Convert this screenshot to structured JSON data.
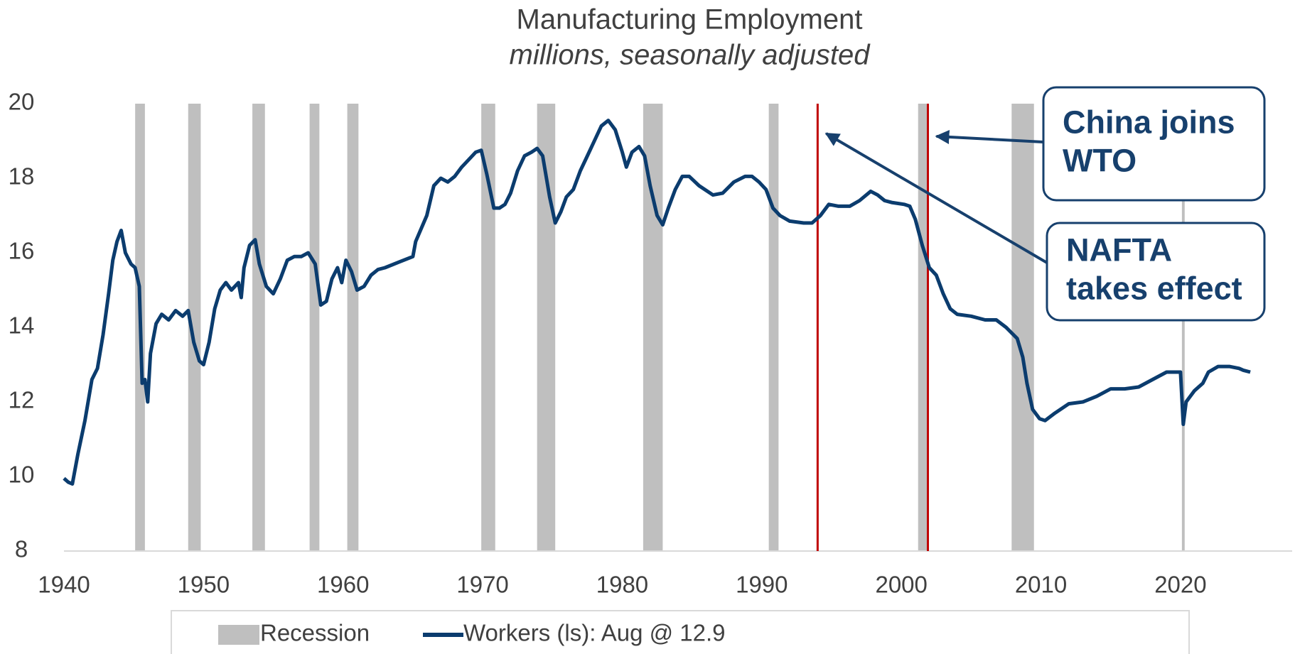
{
  "chart_data": {
    "type": "line",
    "title": "Manufacturing Employment",
    "subtitle": "millions, seasonally adjusted",
    "xlim": [
      1940,
      2028
    ],
    "xticks": [
      1940,
      1950,
      1960,
      1970,
      1980,
      1990,
      2000,
      2010,
      2020
    ],
    "ylim": [
      8,
      20
    ],
    "yticks": [
      8,
      10,
      12,
      14,
      16,
      18,
      20
    ],
    "grid": false,
    "legend": "bottom",
    "recessions": {
      "name": "Recession",
      "color": "#bfbfbf",
      "periods": [
        [
          1945.1,
          1945.8
        ],
        [
          1948.9,
          1949.8
        ],
        [
          1953.5,
          1954.4
        ],
        [
          1957.6,
          1958.3
        ],
        [
          1960.3,
          1961.1
        ],
        [
          1969.9,
          1970.9
        ],
        [
          1973.9,
          1975.2
        ],
        [
          1981.5,
          1982.9
        ],
        [
          1990.5,
          1991.2
        ],
        [
          2001.2,
          2001.9
        ],
        [
          2007.9,
          2009.5
        ],
        [
          2020.1,
          2020.3
        ]
      ]
    },
    "markers": [
      {
        "x": 1994,
        "color": "#c00000",
        "label": [
          "NAFTA",
          "takes effect"
        ]
      },
      {
        "x": 2001.9,
        "color": "#c00000",
        "label": [
          "China joins",
          "WTO"
        ]
      }
    ],
    "series": [
      {
        "name": "Workers (ls): Aug @ 12.9",
        "color": "#0b3c6e",
        "x": [
          1940.0,
          1940.3,
          1940.6,
          1941,
          1941.5,
          1942,
          1942.4,
          1942.8,
          1943.2,
          1943.5,
          1943.8,
          1944.1,
          1944.4,
          1944.8,
          1945.1,
          1945.4,
          1945.6,
          1945.8,
          1946.0,
          1946.2,
          1946.6,
          1947.0,
          1947.5,
          1948,
          1948.5,
          1948.9,
          1949.3,
          1949.7,
          1950.0,
          1950.4,
          1950.8,
          1951.2,
          1951.6,
          1952.0,
          1952.5,
          1952.7,
          1952.9,
          1953.3,
          1953.7,
          1954.0,
          1954.5,
          1955.0,
          1955.5,
          1956.0,
          1956.5,
          1957.0,
          1957.5,
          1958.0,
          1958.4,
          1958.8,
          1959.2,
          1959.6,
          1959.9,
          1960.2,
          1960.6,
          1961.0,
          1961.5,
          1962.0,
          1962.5,
          1963.0,
          1964.0,
          1965.0,
          1965.2,
          1966.0,
          1966.5,
          1967.0,
          1967.5,
          1968.0,
          1968.5,
          1969.0,
          1969.5,
          1969.9,
          1970.3,
          1970.8,
          1971.2,
          1971.6,
          1972.0,
          1972.5,
          1973.0,
          1973.5,
          1973.9,
          1974.3,
          1974.8,
          1975.2,
          1975.6,
          1976.0,
          1976.5,
          1977.0,
          1977.5,
          1978.0,
          1978.5,
          1979.0,
          1979.5,
          1980.0,
          1980.3,
          1980.7,
          1981.2,
          1981.6,
          1982.0,
          1982.5,
          1982.9,
          1983.3,
          1983.8,
          1984.3,
          1984.8,
          1985.5,
          1986.5,
          1987.2,
          1988.0,
          1988.8,
          1989.3,
          1989.8,
          1990.3,
          1990.8,
          1991.3,
          1992.0,
          1993.0,
          1993.6,
          1994.2,
          1994.8,
          1995.5,
          1996.3,
          1997.0,
          1997.8,
          1998.3,
          1998.8,
          1999.3,
          2000.2,
          2000.6,
          2001.0,
          2001.5,
          2002.0,
          2002.5,
          2003.0,
          2003.5,
          2004.0,
          2005.0,
          2006.0,
          2006.8,
          2007.5,
          2008.3,
          2008.7,
          2009.0,
          2009.4,
          2009.9,
          2010.3,
          2011,
          2012,
          2013,
          2014,
          2015,
          2016,
          2017,
          2018,
          2019,
          2020.0,
          2020.2,
          2020.4,
          2021,
          2021.6,
          2022.0,
          2022.7,
          2023.5,
          2024.2,
          2024.5,
          2025.0
        ],
        "values": [
          9.95,
          9.85,
          9.8,
          10.6,
          11.5,
          12.6,
          12.9,
          13.8,
          14.9,
          15.8,
          16.3,
          16.6,
          16.0,
          15.7,
          15.6,
          15.1,
          12.5,
          12.6,
          12.0,
          13.3,
          14.1,
          14.35,
          14.2,
          14.45,
          14.3,
          14.45,
          13.6,
          13.1,
          13.0,
          13.6,
          14.5,
          15.0,
          15.2,
          15.0,
          15.2,
          14.8,
          15.6,
          16.2,
          16.35,
          15.7,
          15.1,
          14.9,
          15.3,
          15.8,
          15.9,
          15.9,
          16.0,
          15.7,
          14.6,
          14.7,
          15.3,
          15.6,
          15.2,
          15.8,
          15.5,
          15.0,
          15.1,
          15.4,
          15.55,
          15.6,
          15.75,
          15.9,
          16.3,
          17.0,
          17.8,
          18.0,
          17.9,
          18.05,
          18.3,
          18.5,
          18.7,
          18.75,
          18.1,
          17.2,
          17.2,
          17.3,
          17.6,
          18.2,
          18.6,
          18.7,
          18.8,
          18.6,
          17.5,
          16.8,
          17.1,
          17.5,
          17.7,
          18.2,
          18.6,
          19.0,
          19.4,
          19.55,
          19.3,
          18.7,
          18.3,
          18.7,
          18.85,
          18.6,
          17.8,
          17.0,
          16.75,
          17.2,
          17.7,
          18.05,
          18.05,
          17.8,
          17.55,
          17.6,
          17.9,
          18.05,
          18.05,
          17.9,
          17.7,
          17.2,
          17.0,
          16.85,
          16.8,
          16.8,
          17.0,
          17.3,
          17.25,
          17.25,
          17.4,
          17.65,
          17.55,
          17.4,
          17.35,
          17.3,
          17.25,
          16.9,
          16.2,
          15.6,
          15.4,
          14.9,
          14.5,
          14.35,
          14.3,
          14.2,
          14.2,
          14.0,
          13.7,
          13.2,
          12.5,
          11.8,
          11.55,
          11.5,
          11.7,
          11.95,
          12.0,
          12.15,
          12.35,
          12.35,
          12.4,
          12.6,
          12.8,
          12.8,
          11.4,
          12.0,
          12.3,
          12.5,
          12.8,
          12.95,
          12.95,
          12.9,
          12.85,
          12.8
        ]
      }
    ]
  }
}
